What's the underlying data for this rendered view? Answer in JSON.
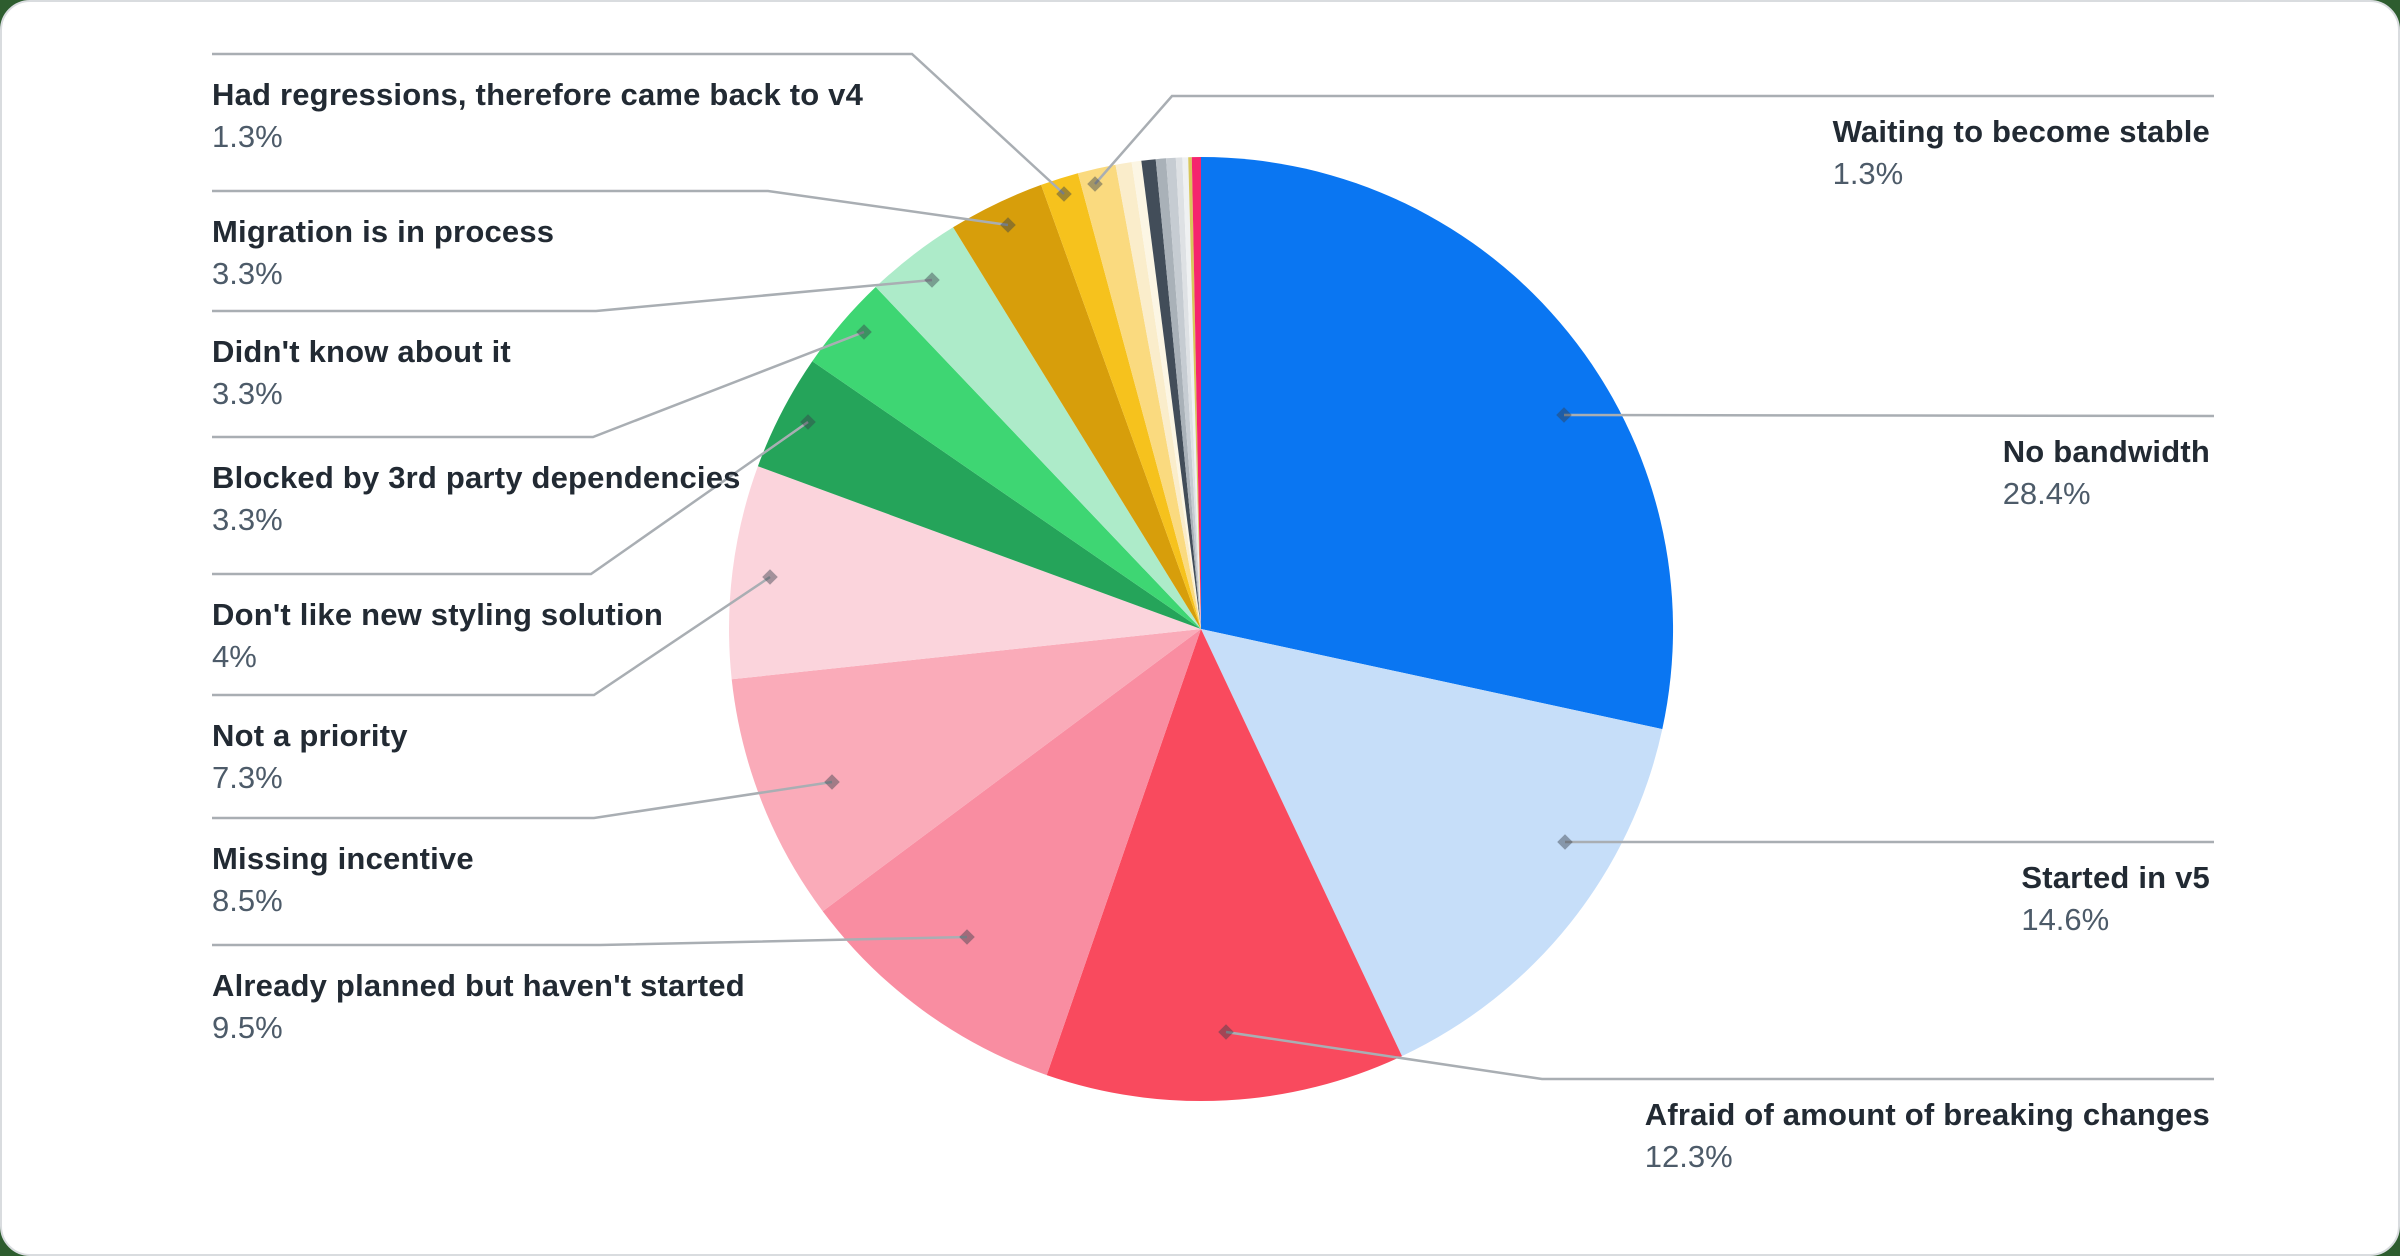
{
  "theme": {
    "page_background": "#2E5D2F",
    "card_background": "#FFFFFF",
    "card_border": "#D9DCDF",
    "label_color": "#222A33",
    "percent_color": "#4D5B69",
    "leader_line_color": "#A9AEB3",
    "leader_dot_color": "rgba(55,65,75,0.45)"
  },
  "chart_data": {
    "type": "pie",
    "title": "",
    "legend_position": "none",
    "start_angle": "12 o'clock, clockwise",
    "slices": [
      {
        "label": "No bandwidth",
        "pct": "28.4%",
        "value": 28.4,
        "color": "#0A76F2",
        "side": "right"
      },
      {
        "label": "Started in v5",
        "pct": "14.6%",
        "value": 14.6,
        "color": "#C6DEF9",
        "side": "right"
      },
      {
        "label": "Afraid of amount of breaking changes",
        "pct": "12.3%",
        "value": 12.3,
        "color": "#F94A5E",
        "side": "right"
      },
      {
        "label": "Already planned but haven't started",
        "pct": "9.5%",
        "value": 9.5,
        "color": "#F98DA1",
        "side": "left"
      },
      {
        "label": "Missing incentive",
        "pct": "8.5%",
        "value": 8.5,
        "color": "#FAABB9",
        "side": "left"
      },
      {
        "label": "Not a priority",
        "pct": "7.3%",
        "value": 7.3,
        "color": "#FBD4DC",
        "side": "left"
      },
      {
        "label": "Don't like new styling solution",
        "pct": "4%",
        "value": 4,
        "color": "#25A45A",
        "side": "left"
      },
      {
        "label": "Blocked by 3rd party dependencies",
        "pct": "3.3%",
        "value": 3.3,
        "color": "#3ED673",
        "side": "left"
      },
      {
        "label": "Didn't know about it",
        "pct": "3.3%",
        "value": 3.3,
        "color": "#ADEBC9",
        "side": "left"
      },
      {
        "label": "Migration is in process",
        "pct": "3.3%",
        "value": 3.3,
        "color": "#D79E0B",
        "side": "left"
      },
      {
        "label": "Had regressions, therefore came back to v4",
        "pct": "1.3%",
        "value": 1.3,
        "color": "#F6C21D",
        "side": "left"
      },
      {
        "label": "Waiting to become stable",
        "pct": "1.3%",
        "value": 1.3,
        "color": "#FADA7F",
        "side": "right"
      },
      {
        "label": "",
        "pct": "",
        "value": 0.55,
        "color": "#FAEDCB"
      },
      {
        "label": "",
        "pct": "",
        "value": 0.33,
        "color": "#FCF6E4"
      },
      {
        "label": "",
        "pct": "",
        "value": 0.49,
        "color": "#424D59"
      },
      {
        "label": "",
        "pct": "",
        "value": 0.35,
        "color": "#A9B1B8"
      },
      {
        "label": "",
        "pct": "",
        "value": 0.33,
        "color": "#C6CCD2"
      },
      {
        "label": "",
        "pct": "",
        "value": 0.22,
        "color": "#DEE1E4"
      },
      {
        "label": "",
        "pct": "",
        "value": 0.2,
        "color": "#EFF1F2"
      },
      {
        "label": "",
        "pct": "",
        "value": 0.12,
        "color": "#D9C75B"
      },
      {
        "label": "",
        "pct": "",
        "value": 0.31,
        "color": "#F5256E"
      }
    ]
  }
}
